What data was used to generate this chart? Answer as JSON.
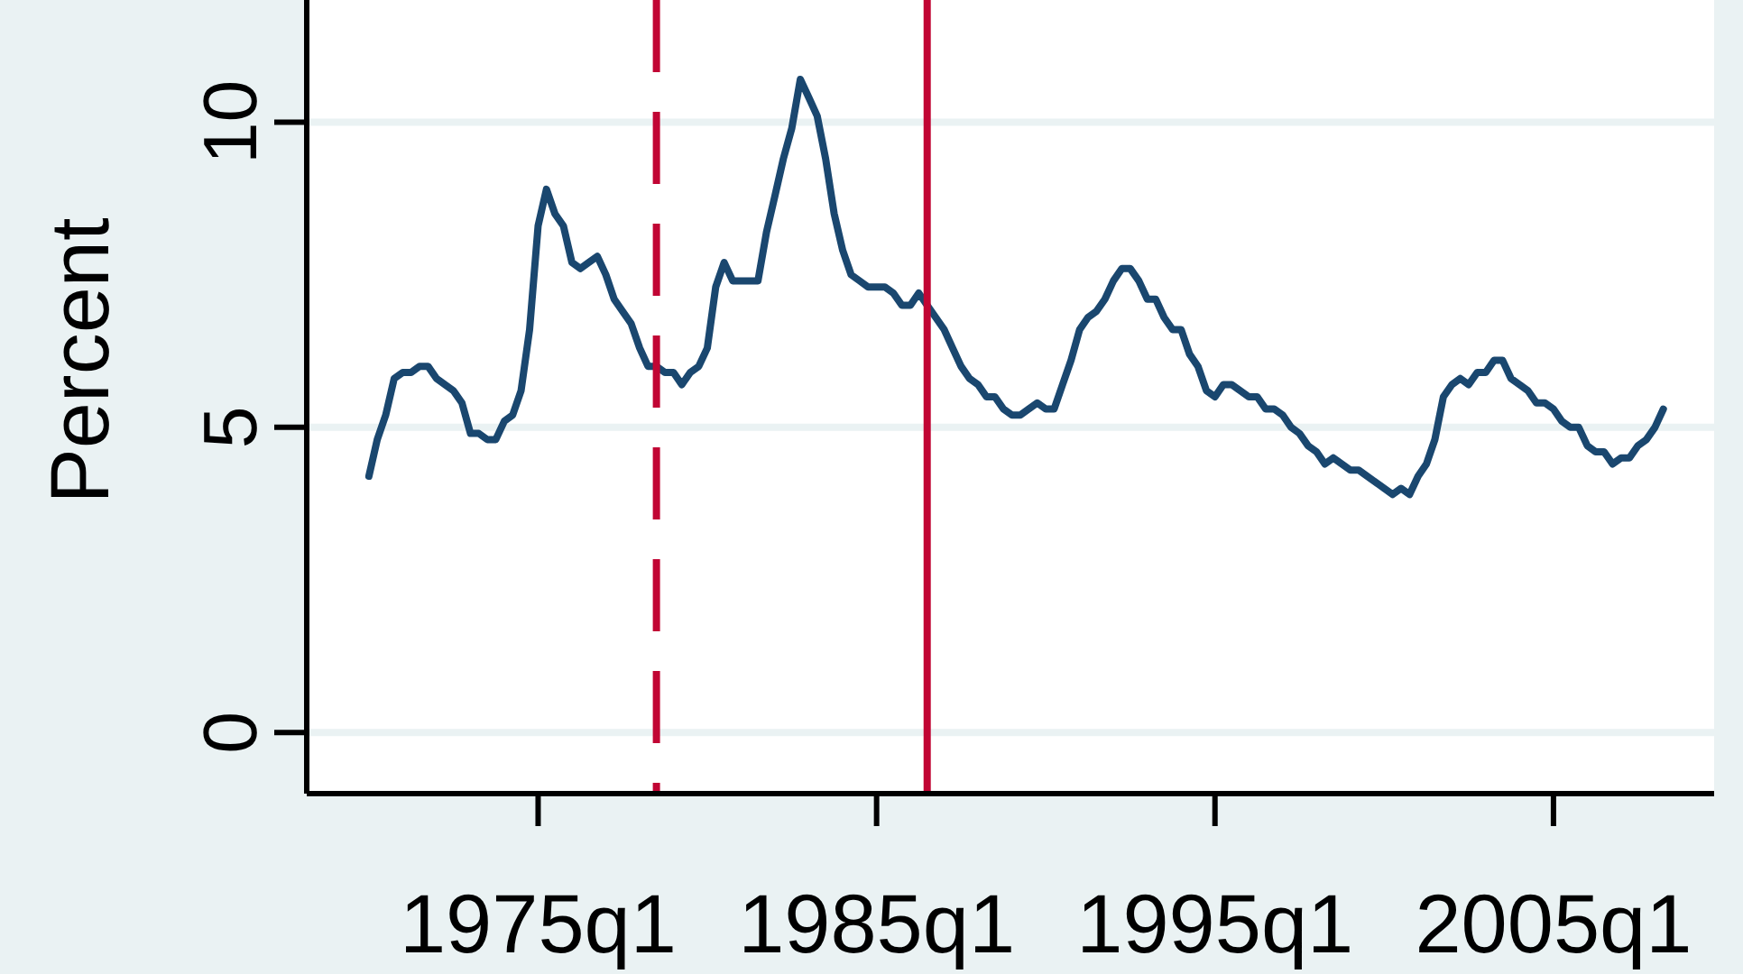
{
  "chart_data": {
    "type": "line",
    "ylabel": "Percent",
    "x": [
      "1970-01",
      "1970-04",
      "1970-07",
      "1970-10",
      "1971-01",
      "1971-04",
      "1971-07",
      "1971-10",
      "1972-01",
      "1972-04",
      "1972-07",
      "1972-10",
      "1973-01",
      "1973-04",
      "1973-07",
      "1973-10",
      "1974-01",
      "1974-04",
      "1974-07",
      "1974-10",
      "1975-01",
      "1975-04",
      "1975-07",
      "1975-10",
      "1976-01",
      "1976-04",
      "1976-07",
      "1976-10",
      "1977-01",
      "1977-04",
      "1977-07",
      "1977-10",
      "1978-01",
      "1978-04",
      "1978-07",
      "1978-10",
      "1979-01",
      "1979-04",
      "1979-07",
      "1979-10",
      "1980-01",
      "1980-04",
      "1980-07",
      "1980-10",
      "1981-01",
      "1981-04",
      "1981-07",
      "1981-10",
      "1982-01",
      "1982-04",
      "1982-07",
      "1982-10",
      "1983-01",
      "1983-04",
      "1983-07",
      "1983-10",
      "1984-01",
      "1984-04",
      "1984-07",
      "1984-10",
      "1985-01",
      "1985-04",
      "1985-07",
      "1985-10",
      "1986-01",
      "1986-04",
      "1986-07",
      "1986-10",
      "1987-01",
      "1987-04",
      "1987-07",
      "1987-10",
      "1988-01",
      "1988-04",
      "1988-07",
      "1988-10",
      "1989-01",
      "1989-04",
      "1989-07",
      "1989-10",
      "1990-01",
      "1990-04",
      "1990-07",
      "1990-10",
      "1991-01",
      "1991-04",
      "1991-07",
      "1991-10",
      "1992-01",
      "1992-04",
      "1992-07",
      "1992-10",
      "1993-01",
      "1993-04",
      "1993-07",
      "1993-10",
      "1994-01",
      "1994-04",
      "1994-07",
      "1994-10",
      "1995-01",
      "1995-04",
      "1995-07",
      "1995-10",
      "1996-01",
      "1996-04",
      "1996-07",
      "1996-10",
      "1997-01",
      "1997-04",
      "1997-07",
      "1997-10",
      "1998-01",
      "1998-04",
      "1998-07",
      "1998-10",
      "1999-01",
      "1999-04",
      "1999-07",
      "1999-10",
      "2000-01",
      "2000-04",
      "2000-07",
      "2000-10",
      "2001-01",
      "2001-04",
      "2001-07",
      "2001-10",
      "2002-01",
      "2002-04",
      "2002-07",
      "2002-10",
      "2003-01",
      "2003-04",
      "2003-07",
      "2003-10",
      "2004-01",
      "2004-04",
      "2004-07",
      "2004-10",
      "2005-01",
      "2005-04",
      "2005-07",
      "2005-10",
      "2006-01",
      "2006-04",
      "2006-07",
      "2006-10",
      "2007-01",
      "2007-04",
      "2007-07",
      "2007-10",
      "2008-01",
      "2008-04"
    ],
    "series": [
      {
        "color": "#1a476f",
        "values": [
          4.2,
          4.8,
          5.2,
          5.8,
          5.9,
          5.9,
          6.0,
          6.0,
          5.8,
          5.7,
          5.6,
          5.4,
          4.9,
          4.9,
          4.8,
          4.8,
          5.1,
          5.2,
          5.6,
          6.6,
          8.3,
          8.9,
          8.5,
          8.3,
          7.7,
          7.6,
          7.7,
          7.8,
          7.5,
          7.1,
          6.9,
          6.7,
          6.3,
          6.0,
          6.0,
          5.9,
          5.9,
          5.7,
          5.9,
          6.0,
          6.3,
          7.3,
          7.7,
          7.4,
          7.4,
          7.4,
          7.4,
          8.2,
          8.8,
          9.4,
          9.9,
          10.7,
          10.4,
          10.1,
          9.4,
          8.5,
          7.9,
          7.5,
          7.4,
          7.3,
          7.3,
          7.3,
          7.2,
          7.0,
          7.0,
          7.2,
          7.0,
          6.8,
          6.6,
          6.3,
          6.0,
          5.8,
          5.7,
          5.5,
          5.5,
          5.3,
          5.2,
          5.2,
          5.3,
          5.4,
          5.3,
          5.3,
          5.7,
          6.1,
          6.6,
          6.8,
          6.9,
          7.1,
          7.4,
          7.6,
          7.6,
          7.4,
          7.1,
          7.1,
          6.8,
          6.6,
          6.6,
          6.2,
          6.0,
          5.6,
          5.5,
          5.7,
          5.7,
          5.6,
          5.5,
          5.5,
          5.3,
          5.3,
          5.2,
          5.0,
          4.9,
          4.7,
          4.6,
          4.4,
          4.5,
          4.4,
          4.3,
          4.3,
          4.2,
          4.1,
          4.0,
          3.9,
          4.0,
          3.9,
          4.2,
          4.4,
          4.8,
          5.5,
          5.7,
          5.8,
          5.7,
          5.9,
          5.9,
          6.1,
          6.1,
          5.8,
          5.7,
          5.6,
          5.4,
          5.4,
          5.3,
          5.1,
          5.0,
          5.0,
          4.7,
          4.6,
          4.6,
          4.4,
          4.5,
          4.5,
          4.7,
          4.8,
          5.0,
          5.3
        ]
      }
    ],
    "xlim": [
      "1968-03",
      "2009-10"
    ],
    "xticks": [
      {
        "value": "1975-01",
        "label": "1975q1"
      },
      {
        "value": "1985-01",
        "label": "1985q1"
      },
      {
        "value": "1995-01",
        "label": "1995q1"
      },
      {
        "value": "2005-01",
        "label": "2005q1"
      }
    ],
    "ylim": [
      -1,
      12
    ],
    "yticks": [
      0,
      5,
      10
    ],
    "grid": "y",
    "ref_lines": [
      {
        "axis": "x",
        "value": "1978-07",
        "color": "#c10534",
        "line_style": "dashed"
      },
      {
        "axis": "x",
        "value": "1986-07",
        "color": "#c10534",
        "line_style": "solid"
      }
    ]
  }
}
